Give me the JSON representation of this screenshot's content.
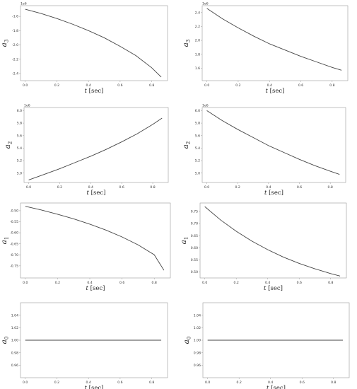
{
  "chart_data": [
    {
      "type": "line",
      "xlabel": "t [sec]",
      "ylabel": "a3",
      "offset_text": "1e6",
      "xlim": [
        -0.03,
        0.9
      ],
      "ylim": [
        -2.5,
        -1.45
      ],
      "xticks": [
        "0.0",
        "0.2",
        "0.4",
        "0.6",
        "0.8"
      ],
      "xtick_values": [
        0,
        0.2,
        0.4,
        0.6,
        0.8
      ],
      "yticks": [
        "-1.6",
        "-1.8",
        "-2.0",
        "-2.2",
        "-2.4"
      ],
      "ytick_values": [
        -1.6,
        -1.8,
        -2.0,
        -2.2,
        -2.4
      ],
      "x": [
        0,
        0.1,
        0.2,
        0.3,
        0.4,
        0.5,
        0.6,
        0.7,
        0.8,
        0.86
      ],
      "y": [
        -1.5,
        -1.56,
        -1.63,
        -1.71,
        -1.8,
        -1.9,
        -2.02,
        -2.15,
        -2.32,
        -2.45
      ]
    },
    {
      "type": "line",
      "xlabel": "t [sec]",
      "ylabel": "a3",
      "offset_text": "1e6",
      "xlim": [
        -0.03,
        0.9
      ],
      "ylim": [
        1.42,
        2.5
      ],
      "xticks": [
        "0.0",
        "0.2",
        "0.4",
        "0.6",
        "0.8"
      ],
      "xtick_values": [
        0,
        0.2,
        0.4,
        0.6,
        0.8
      ],
      "yticks": [
        "1.6",
        "1.8",
        "2.0",
        "2.2",
        "2.4"
      ],
      "ytick_values": [
        1.6,
        1.8,
        2.0,
        2.2,
        2.4
      ],
      "x": [
        0,
        0.1,
        0.2,
        0.3,
        0.4,
        0.5,
        0.6,
        0.7,
        0.8,
        0.86
      ],
      "y": [
        2.46,
        2.31,
        2.18,
        2.06,
        1.95,
        1.86,
        1.77,
        1.69,
        1.61,
        1.57
      ]
    },
    {
      "type": "line",
      "xlabel": "t [sec]",
      "ylabel": "a2",
      "offset_text": "1e6",
      "xlim": [
        -0.03,
        0.9
      ],
      "ylim": [
        4.85,
        6.05
      ],
      "xticks": [
        "0.0",
        "0.2",
        "0.4",
        "0.6",
        "0.8"
      ],
      "xtick_values": [
        0,
        0.2,
        0.4,
        0.6,
        0.8
      ],
      "yticks": [
        "5.0",
        "5.2",
        "5.4",
        "5.6",
        "5.8",
        "6.0"
      ],
      "ytick_values": [
        5.0,
        5.2,
        5.4,
        5.6,
        5.8,
        6.0
      ],
      "x": [
        0,
        0.1,
        0.2,
        0.3,
        0.4,
        0.5,
        0.6,
        0.7,
        0.8,
        0.86
      ],
      "y": [
        4.89,
        4.98,
        5.07,
        5.17,
        5.27,
        5.38,
        5.5,
        5.63,
        5.78,
        5.88
      ]
    },
    {
      "type": "line",
      "xlabel": "t [sec]",
      "ylabel": "a2",
      "offset_text": "1e6",
      "xlim": [
        -0.03,
        0.9
      ],
      "ylim": [
        4.85,
        6.05
      ],
      "xticks": [
        "0.0",
        "0.2",
        "0.4",
        "0.6",
        "0.8"
      ],
      "xtick_values": [
        0,
        0.2,
        0.4,
        0.6,
        0.8
      ],
      "yticks": [
        "5.0",
        "5.2",
        "5.4",
        "5.6",
        "5.8",
        "6.0"
      ],
      "ytick_values": [
        5.0,
        5.2,
        5.4,
        5.6,
        5.8,
        6.0
      ],
      "x": [
        0,
        0.1,
        0.2,
        0.3,
        0.4,
        0.5,
        0.6,
        0.7,
        0.8,
        0.86
      ],
      "y": [
        6.0,
        5.84,
        5.7,
        5.57,
        5.44,
        5.33,
        5.22,
        5.12,
        5.03,
        4.98
      ]
    },
    {
      "type": "line",
      "xlabel": "t [sec]",
      "ylabel": "a1",
      "offset_text": "",
      "xlim": [
        -0.03,
        0.9
      ],
      "ylim": [
        -0.805,
        -0.465
      ],
      "xticks": [
        "0.0",
        "0.2",
        "0.4",
        "0.6",
        "0.8"
      ],
      "xtick_values": [
        0,
        0.2,
        0.4,
        0.6,
        0.8
      ],
      "yticks": [
        "-0.50",
        "-0.55",
        "-0.60",
        "-0.65",
        "-0.70",
        "-0.75"
      ],
      "ytick_values": [
        -0.5,
        -0.55,
        -0.6,
        -0.65,
        -0.7,
        -0.75
      ],
      "x": [
        0,
        0.1,
        0.2,
        0.3,
        0.4,
        0.5,
        0.6,
        0.7,
        0.8,
        0.86
      ],
      "y": [
        -0.48,
        -0.497,
        -0.516,
        -0.537,
        -0.561,
        -0.588,
        -0.619,
        -0.655,
        -0.7,
        -0.77
      ]
    },
    {
      "type": "line",
      "xlabel": "t [sec]",
      "ylabel": "a1",
      "offset_text": "",
      "xlim": [
        -0.03,
        0.9
      ],
      "ylim": [
        0.475,
        0.785
      ],
      "xticks": [
        "0.0",
        "0.2",
        "0.4",
        "0.6",
        "0.8"
      ],
      "xtick_values": [
        0,
        0.2,
        0.4,
        0.6,
        0.8
      ],
      "yticks": [
        "0.75",
        "0.70",
        "0.65",
        "0.60",
        "0.55",
        "0.50"
      ],
      "ytick_values": [
        0.75,
        0.7,
        0.65,
        0.6,
        0.55,
        0.5
      ],
      "x": [
        0,
        0.1,
        0.2,
        0.3,
        0.4,
        0.5,
        0.6,
        0.7,
        0.8,
        0.86
      ],
      "y": [
        0.77,
        0.715,
        0.668,
        0.627,
        0.592,
        0.561,
        0.535,
        0.513,
        0.493,
        0.483
      ]
    },
    {
      "type": "line",
      "xlabel": "t [sec]",
      "ylabel": "a0",
      "offset_text": "",
      "xlim": [
        -0.03,
        0.9
      ],
      "ylim": [
        0.94,
        1.06
      ],
      "xticks": [
        "0.0",
        "0.2",
        "0.4",
        "0.6",
        "0.8"
      ],
      "xtick_values": [
        0,
        0.2,
        0.4,
        0.6,
        0.8
      ],
      "yticks": [
        "1.04",
        "1.02",
        "1.00",
        "0.98",
        "0.96"
      ],
      "ytick_values": [
        1.04,
        1.02,
        1.0,
        0.98,
        0.96
      ],
      "x": [
        0,
        0.86
      ],
      "y": [
        1.0,
        1.0
      ]
    },
    {
      "type": "line",
      "xlabel": "t [sec]",
      "ylabel": "a0",
      "offset_text": "",
      "xlim": [
        -0.03,
        0.9
      ],
      "ylim": [
        0.94,
        1.06
      ],
      "xticks": [
        "0.0",
        "0.2",
        "0.4",
        "0.6",
        "0.8"
      ],
      "xtick_values": [
        0,
        0.2,
        0.4,
        0.6,
        0.8
      ],
      "yticks": [
        "1.04",
        "1.02",
        "1.00",
        "0.98",
        "0.96"
      ],
      "ytick_values": [
        1.04,
        1.02,
        1.0,
        0.98,
        0.96
      ],
      "x": [
        0,
        0.86
      ],
      "y": [
        1.0,
        1.0
      ]
    }
  ]
}
